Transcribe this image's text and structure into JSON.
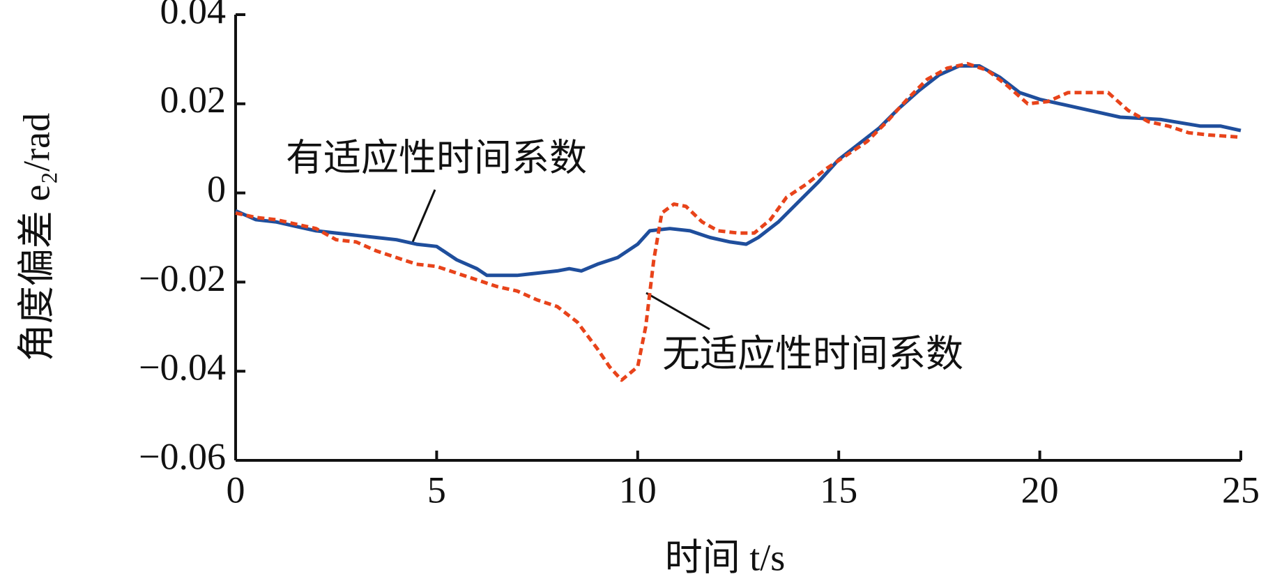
{
  "chart_data": {
    "type": "line",
    "x_label": "时间 t/s",
    "y_label": "角度偏差 e₂/rad",
    "xlim": [
      0,
      25
    ],
    "xticks": [
      0,
      5,
      10,
      15,
      20,
      25
    ],
    "ylim": [
      -0.06,
      0.04
    ],
    "yticks": [
      {
        "value": -0.06,
        "label": "−0.06"
      },
      {
        "value": -0.04,
        "label": "−0.04"
      },
      {
        "value": -0.02,
        "label": "−0.02"
      },
      0,
      0.02,
      0.04
    ],
    "series": [
      {
        "name": "有适应性时间系数",
        "color": "#1f4e9c",
        "dash": false,
        "x": [
          0,
          0.5,
          1,
          1.5,
          2,
          2.5,
          3,
          3.5,
          4,
          4.5,
          5,
          5.5,
          6,
          6.25,
          7,
          7.5,
          8,
          8.3,
          8.6,
          9,
          9.5,
          10,
          10.3,
          10.8,
          11.3,
          11.8,
          12.3,
          12.7,
          13,
          13.5,
          14,
          14.5,
          15,
          15.5,
          16,
          16.5,
          17,
          17.5,
          18,
          18.5,
          19,
          19.5,
          20,
          20.5,
          21,
          21.5,
          22,
          23,
          24,
          24.5,
          25
        ],
        "values": [
          -0.004,
          -0.006,
          -0.0065,
          -0.0075,
          -0.0085,
          -0.009,
          -0.0095,
          -0.01,
          -0.0105,
          -0.0115,
          -0.012,
          -0.015,
          -0.017,
          -0.0185,
          -0.0185,
          -0.018,
          -0.0175,
          -0.017,
          -0.0175,
          -0.016,
          -0.0145,
          -0.0115,
          -0.0085,
          -0.008,
          -0.0085,
          -0.01,
          -0.011,
          -0.0115,
          -0.01,
          -0.0065,
          -0.002,
          0.0025,
          0.0075,
          0.011,
          0.0145,
          0.019,
          0.023,
          0.0265,
          0.0285,
          0.0285,
          0.026,
          0.0225,
          0.021,
          0.02,
          0.019,
          0.018,
          0.017,
          0.0165,
          0.015,
          0.015,
          0.014
        ]
      },
      {
        "name": "无适应性时间系数",
        "color": "#e8431a",
        "dash": true,
        "x": [
          0,
          0.5,
          1,
          1.5,
          2,
          2.5,
          3,
          3.5,
          4,
          4.5,
          5,
          5.5,
          6,
          6.5,
          7,
          7.5,
          8,
          8.5,
          9,
          9.3,
          9.6,
          10,
          10.2,
          10.4,
          10.6,
          10.9,
          11.2,
          11.6,
          12,
          12.5,
          12.9,
          13.3,
          13.7,
          14.2,
          14.7,
          15.2,
          15.7,
          16.2,
          16.7,
          17.2,
          17.7,
          18.2,
          18.7,
          19.2,
          19.7,
          20.2,
          20.7,
          21.2,
          21.7,
          22.2,
          22.7,
          23.2,
          23.7,
          24.2,
          25
        ],
        "values": [
          -0.0045,
          -0.0055,
          -0.006,
          -0.007,
          -0.008,
          -0.0105,
          -0.011,
          -0.013,
          -0.0145,
          -0.016,
          -0.0165,
          -0.018,
          -0.0195,
          -0.021,
          -0.022,
          -0.024,
          -0.0255,
          -0.029,
          -0.035,
          -0.039,
          -0.042,
          -0.039,
          -0.03,
          -0.015,
          -0.0045,
          -0.0025,
          -0.003,
          -0.0065,
          -0.0085,
          -0.009,
          -0.009,
          -0.006,
          -0.001,
          0.002,
          0.0055,
          0.0085,
          0.0115,
          0.016,
          0.021,
          0.0255,
          0.028,
          0.029,
          0.0275,
          0.024,
          0.02,
          0.0205,
          0.0225,
          0.0225,
          0.0225,
          0.0185,
          0.016,
          0.015,
          0.0135,
          0.013,
          0.0125
        ]
      }
    ]
  }
}
